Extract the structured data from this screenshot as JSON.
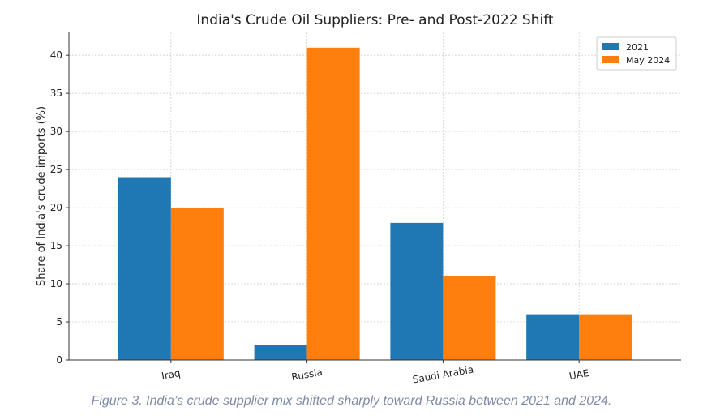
{
  "chart_data": {
    "type": "bar",
    "title": "India's Crude Oil Suppliers: Pre- and Post-2022 Shift",
    "xlabel": "",
    "ylabel": "Share of India's crude imports (%)",
    "categories": [
      "Iraq",
      "Russia",
      "Saudi Arabia",
      "UAE"
    ],
    "series": [
      {
        "name": "2021",
        "values": [
          24,
          2,
          18,
          6
        ],
        "color": "#1f77b4"
      },
      {
        "name": "May 2024",
        "values": [
          20,
          41,
          11,
          6
        ],
        "color": "#ff7f0e"
      }
    ],
    "ylim": [
      0,
      43
    ],
    "yticks": [
      0,
      5,
      10,
      15,
      20,
      25,
      30,
      35,
      40
    ],
    "grid": true,
    "legend_position": "top-right",
    "xtick_rotation": 10
  },
  "caption": "Figure 3. India’s crude supplier mix shifted sharply toward Russia between 2021 and 2024."
}
